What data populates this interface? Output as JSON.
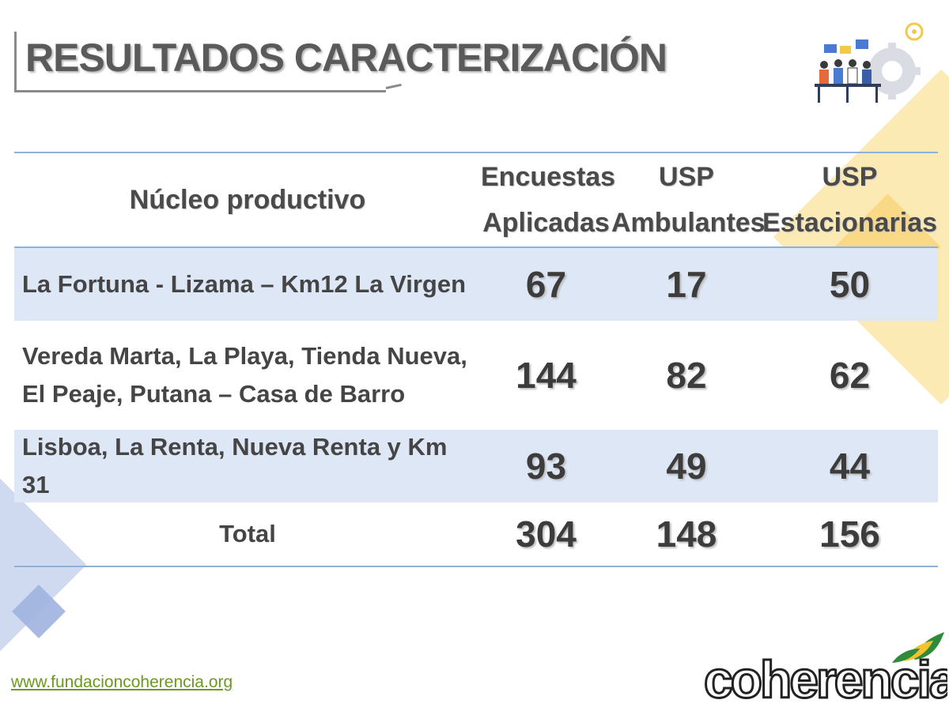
{
  "title": "RESULTADOS CARACTERIZACIÓN",
  "table": {
    "headers": {
      "nucleo": "Núcleo productivo",
      "encuestas_l1": "Encuestas",
      "encuestas_l2": "Aplicadas",
      "ambulantes_l1": "USP",
      "ambulantes_l2": "Ambulantes",
      "estacionarias_l1": "USP",
      "estacionarias_l2": "Estacionarias"
    },
    "rows": [
      {
        "nucleo": "La Fortuna -  Lizama – Km12 La Virgen",
        "encuestas": "67",
        "ambulantes": "17",
        "estacionarias": "50"
      },
      {
        "nucleo": "Vereda Marta, La Playa, Tienda Nueva, El Peaje, Putana – Casa de Barro",
        "encuestas": "144",
        "ambulantes": "82",
        "estacionarias": "62"
      },
      {
        "nucleo": "Lisboa, La Renta, Nueva Renta y Km 31",
        "encuestas": "93",
        "ambulantes": "49",
        "estacionarias": "44"
      }
    ],
    "total": {
      "label": "Total",
      "encuestas": "304",
      "ambulantes": "148",
      "estacionarias": "156"
    }
  },
  "footer": {
    "url": "www.fundacioncoherencia.org"
  },
  "logo": {
    "text": "coherencia",
    "icon": "coherencia-logo"
  },
  "illustration": {
    "icon": "team-meeting-gear-illustration"
  },
  "colors": {
    "table_border": "#8fb0d8",
    "row_shade": "#dde7f6",
    "url_green": "#6a9a1e",
    "deco_yellow": "#fbe6a8",
    "deco_blue": "#c7d4ee"
  }
}
